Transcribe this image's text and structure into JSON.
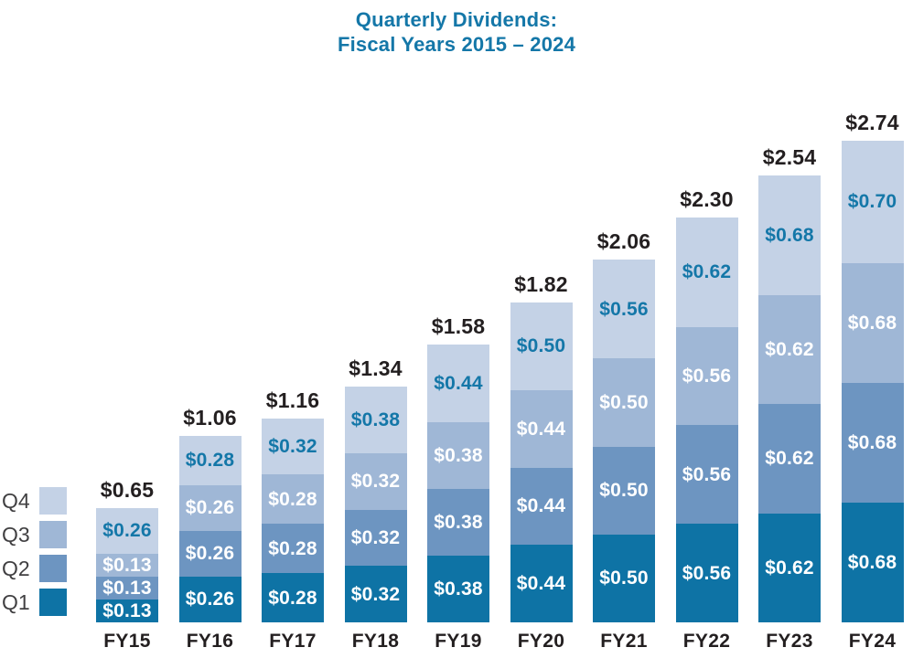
{
  "title": {
    "line1": "Quarterly Dividends:",
    "line2": "Fiscal Years 2015 – 2024"
  },
  "colors": {
    "q1_fill": "#0e73a5",
    "q2_fill": "#6d95c1",
    "q3_fill": "#9fb7d6",
    "q4_fill": "#c4d2e6",
    "title_text": "#1477a8",
    "blue_value_text": "#1477a8",
    "white_value_text": "#ffffff",
    "total_text": "#231f20",
    "axis_text": "#231f20",
    "legend_text": "#414042"
  },
  "legend": {
    "position": "left-bottom",
    "items": [
      {
        "label": "Q4",
        "color": "#c4d2e6"
      },
      {
        "label": "Q3",
        "color": "#9fb7d6"
      },
      {
        "label": "Q2",
        "color": "#6d95c1"
      },
      {
        "label": "Q1",
        "color": "#0e73a5"
      }
    ]
  },
  "chart_data": {
    "type": "bar",
    "stacked": true,
    "title": "Quarterly Dividends: Fiscal Years 2015 – 2024",
    "xlabel": "",
    "ylabel": "",
    "ylim": [
      0,
      2.74
    ],
    "grid": false,
    "legend_position": "left",
    "categories": [
      "FY15",
      "FY16",
      "FY17",
      "FY18",
      "FY19",
      "FY20",
      "FY21",
      "FY22",
      "FY23",
      "FY24"
    ],
    "series": [
      {
        "name": "Q1",
        "color": "#0e73a5",
        "label_color": "#ffffff",
        "values": [
          0.13,
          0.26,
          0.28,
          0.32,
          0.38,
          0.44,
          0.5,
          0.56,
          0.62,
          0.68
        ],
        "labels": [
          "$0.13",
          "$0.26",
          "$0.28",
          "$0.32",
          "$0.38",
          "$0.44",
          "$0.50",
          "$0.56",
          "$0.62",
          "$0.68"
        ]
      },
      {
        "name": "Q2",
        "color": "#6d95c1",
        "label_color": "#ffffff",
        "values": [
          0.13,
          0.26,
          0.28,
          0.32,
          0.38,
          0.44,
          0.5,
          0.56,
          0.62,
          0.68
        ],
        "labels": [
          "$0.13",
          "$0.26",
          "$0.28",
          "$0.32",
          "$0.38",
          "$0.44",
          "$0.50",
          "$0.56",
          "$0.62",
          "$0.68"
        ]
      },
      {
        "name": "Q3",
        "color": "#9fb7d6",
        "label_color": "#ffffff",
        "values": [
          0.13,
          0.26,
          0.28,
          0.32,
          0.38,
          0.44,
          0.5,
          0.56,
          0.62,
          0.68
        ],
        "labels": [
          "$0.13",
          "$0.26",
          "$0.28",
          "$0.32",
          "$0.38",
          "$0.44",
          "$0.50",
          "$0.56",
          "$0.62",
          "$0.68"
        ]
      },
      {
        "name": "Q4",
        "color": "#c4d2e6",
        "label_color": "#1477a8",
        "values": [
          0.26,
          0.28,
          0.32,
          0.38,
          0.44,
          0.5,
          0.56,
          0.62,
          0.68,
          0.7
        ],
        "labels": [
          "$0.26",
          "$0.28",
          "$0.32",
          "$0.38",
          "$0.44",
          "$0.50",
          "$0.56",
          "$0.62",
          "$0.68",
          "$0.70"
        ]
      }
    ],
    "totals": [
      0.65,
      1.06,
      1.16,
      1.34,
      1.58,
      1.82,
      2.06,
      2.3,
      2.54,
      2.74
    ],
    "total_labels": [
      "$0.65",
      "$1.06",
      "$1.16",
      "$1.34",
      "$1.58",
      "$1.82",
      "$2.06",
      "$2.30",
      "$2.54",
      "$2.74"
    ]
  }
}
